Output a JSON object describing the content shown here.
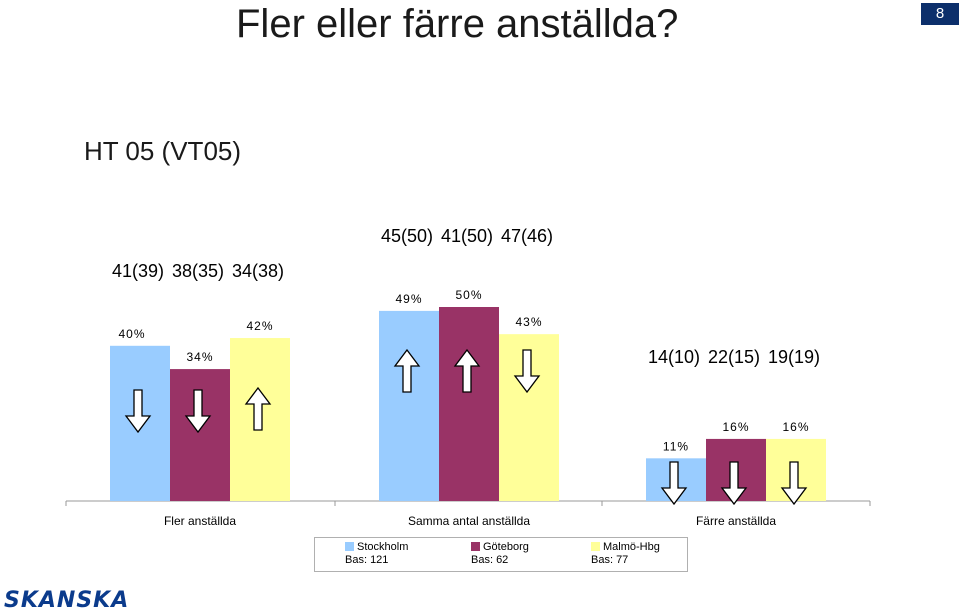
{
  "title": "Fler eller färre anställda?",
  "page_number": "8",
  "logo_text": "SKANSKA",
  "chart_data": {
    "type": "bar",
    "subtitle": "HT 05 (VT05)",
    "categories": [
      "Fler anställda",
      "Samma antal anställda",
      "Färre anställda"
    ],
    "series": [
      {
        "name": "Stockholm",
        "base": "Bas: 121",
        "color": "#99ccff",
        "values": [
          40,
          49,
          11
        ]
      },
      {
        "name": "Göteborg",
        "base": "Bas: 62",
        "color": "#993366",
        "values": [
          34,
          50,
          16
        ]
      },
      {
        "name": "Malmö-Hbg",
        "base": "Bas: 77",
        "color": "#ffff99",
        "values": [
          42,
          43,
          16
        ]
      }
    ],
    "data_labels": [
      [
        "40%",
        "49%",
        "11%"
      ],
      [
        "34%",
        "50%",
        "16%"
      ],
      [
        "42%",
        "43%",
        "16%"
      ]
    ],
    "comparison_labels": [
      [
        "41(39)",
        "38(35)",
        "34(38)"
      ],
      [
        "45(50)",
        "41(50)",
        "47(46)"
      ],
      [
        "14(10)",
        "22(15)",
        "19(19)"
      ]
    ],
    "arrows": [
      [
        "down",
        "down",
        "up"
      ],
      [
        "up",
        "up",
        "down"
      ],
      [
        "down",
        "down",
        "down"
      ]
    ],
    "ylim": [
      0,
      60
    ],
    "grid": false,
    "legend_position": "bottom"
  }
}
